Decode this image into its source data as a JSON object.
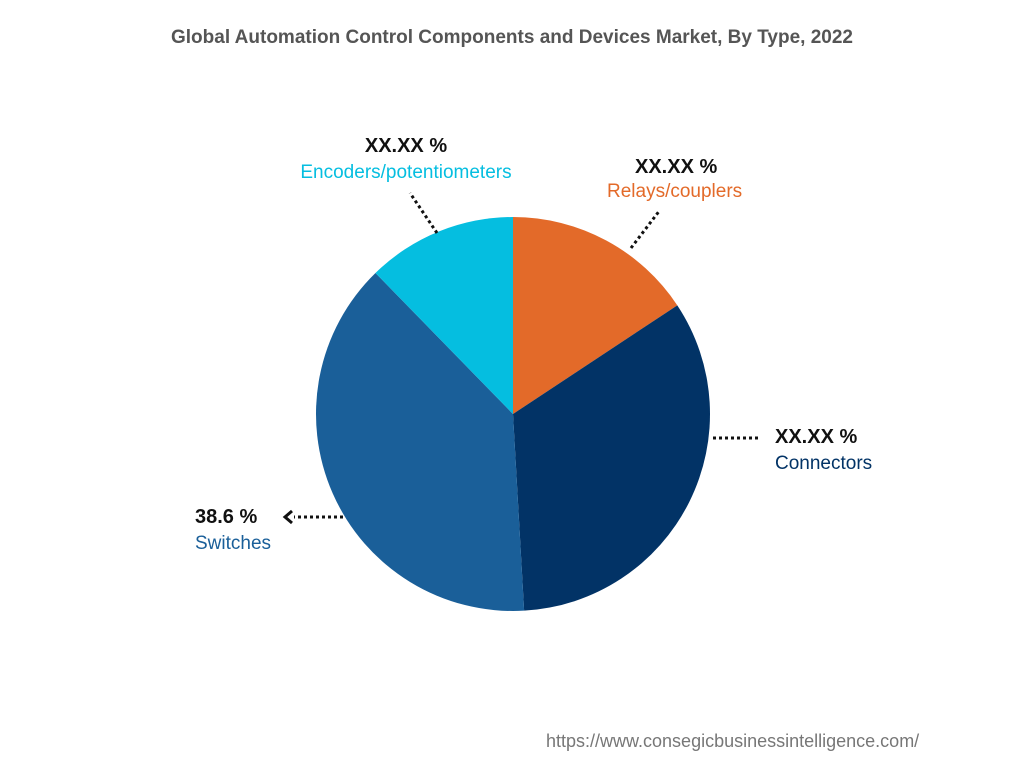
{
  "chart_data": {
    "type": "pie",
    "title": "Global Automation Control Components and Devices Market, By Type, 2022",
    "start_angle": "12 o'clock",
    "direction": "clockwise",
    "slices": [
      {
        "name": "Relays/couplers",
        "value": 15.7,
        "label": "XX.XX %",
        "color": "#E36A29"
      },
      {
        "name": "Connectors",
        "value": 33.4,
        "label": "XX.XX %",
        "color": "#023366"
      },
      {
        "name": "Switches",
        "value": 38.6,
        "label": "38.6 %",
        "color": "#1A5F99"
      },
      {
        "name": "Encoders/potentiometers",
        "value": 12.3,
        "label": "XX.XX %",
        "color": "#05BEE0"
      }
    ]
  },
  "footer": {
    "url": "https://www.consegicbusinessintelligence.com/"
  }
}
